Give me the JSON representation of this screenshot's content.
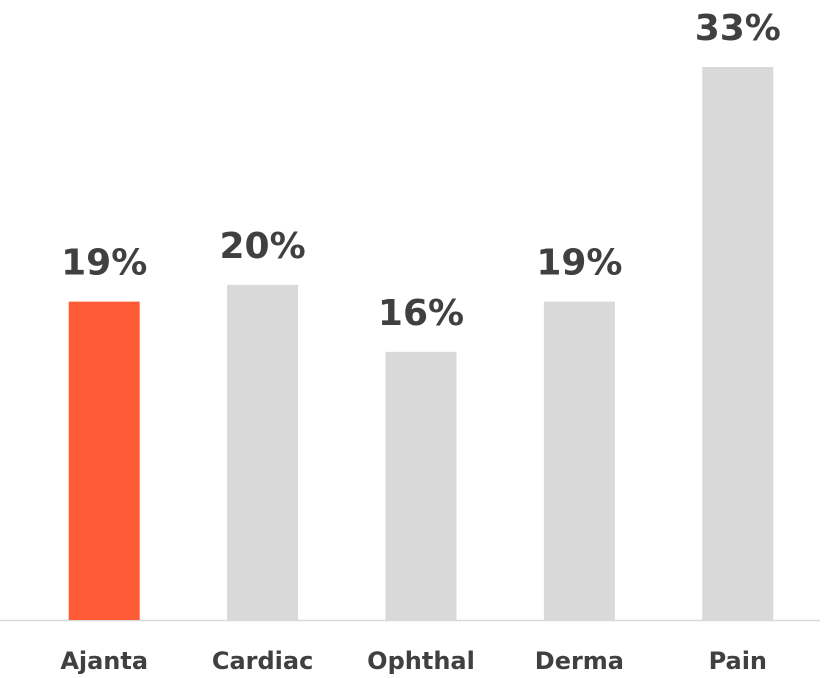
{
  "chart_data": {
    "type": "bar",
    "categories": [
      "Ajanta",
      "Cardiac",
      "Ophthal",
      "Derma",
      "Pain"
    ],
    "values": [
      19,
      20,
      16,
      19,
      33
    ],
    "value_labels": [
      "19%",
      "20%",
      "16%",
      "19%",
      "33%"
    ],
    "colors": [
      "#ff5a36",
      "#d9d9d9",
      "#d9d9d9",
      "#d9d9d9",
      "#d9d9d9"
    ]
  }
}
